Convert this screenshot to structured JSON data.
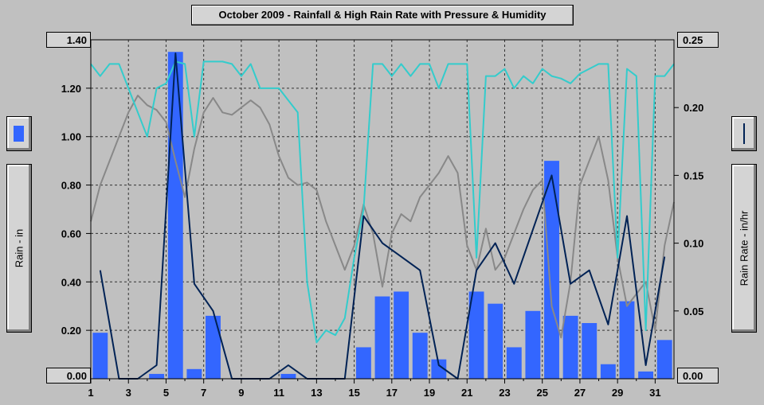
{
  "title": "October 2009 - Rainfall & High Rain Rate with Pressure & Humidity",
  "left_axis_label": "Rain - in",
  "right_axis_label": "Rain Rate - in/hr",
  "colors": {
    "background": "#c0c0c0",
    "bar": "#3366ff",
    "rain_rate": "#002255",
    "pressure": "#888888",
    "humidity": "#33cccc",
    "grid": "#333333"
  },
  "chart_data": {
    "type": "bar",
    "title": "October 2009 - Rainfall & High Rain Rate with Pressure & Humidity",
    "ylabel": "Rain - in",
    "y2label": "Rain Rate - in/hr",
    "xlim": [
      1,
      32
    ],
    "ylim": [
      0,
      1.4
    ],
    "y2lim": [
      0,
      0.25
    ],
    "grid": true,
    "x_ticks": [
      "1",
      "3",
      "5",
      "7",
      "9",
      "11",
      "13",
      "15",
      "17",
      "19",
      "21",
      "23",
      "25",
      "27",
      "29",
      "31"
    ],
    "y_ticks": [
      "0.00",
      "0.20",
      "0.40",
      "0.60",
      "0.80",
      "1.00",
      "1.20",
      "1.40"
    ],
    "y2_ticks": [
      "0.00",
      "0.05",
      "0.10",
      "0.15",
      "0.20",
      "0.25"
    ],
    "rainfall_days": [
      1,
      4,
      5,
      6,
      7,
      11,
      15,
      16,
      17,
      18,
      19,
      21,
      22,
      23,
      24,
      25,
      26,
      27,
      28,
      29,
      30,
      31
    ],
    "rainfall_values": [
      0.19,
      0.02,
      1.35,
      0.04,
      0.26,
      0.02,
      0.13,
      0.34,
      0.36,
      0.19,
      0.08,
      0.36,
      0.31,
      0.13,
      0.28,
      0.9,
      0.26,
      0.23,
      0.06,
      0.32,
      0.03,
      0.16
    ],
    "rain_rate": {
      "x": [
        1.5,
        2.5,
        3.5,
        4.5,
        5.5,
        6.5,
        7.5,
        8.5,
        9.5,
        10.5,
        11.5,
        12.5,
        13.5,
        14.5,
        15.5,
        16.5,
        17.5,
        18.5,
        19.5,
        20.5,
        21.5,
        22.5,
        23.5,
        24.5,
        25.5,
        26.5,
        27.5,
        28.5,
        29.5,
        30.5,
        31.5
      ],
      "y": [
        0.08,
        0.0,
        0.0,
        0.01,
        0.24,
        0.07,
        0.05,
        0.0,
        0.0,
        0.0,
        0.01,
        0.0,
        0.0,
        0.0,
        0.12,
        0.1,
        0.09,
        0.08,
        0.01,
        0.0,
        0.08,
        0.1,
        0.07,
        0.11,
        0.15,
        0.07,
        0.08,
        0.04,
        0.12,
        0.01,
        0.09
      ]
    },
    "pressure_trace": {
      "x": [
        1,
        1.5,
        2,
        2.5,
        3,
        3.5,
        4,
        4.5,
        5,
        5.5,
        6,
        6.5,
        7,
        7.5,
        8,
        8.5,
        9,
        9.5,
        10,
        10.5,
        11,
        11.5,
        12,
        12.5,
        13,
        13.5,
        14,
        14.5,
        15,
        15.5,
        16,
        16.5,
        17,
        17.5,
        18,
        18.5,
        19,
        19.5,
        20,
        20.5,
        21,
        21.5,
        22,
        22.5,
        23,
        23.5,
        24,
        24.5,
        25,
        25.5,
        26,
        26.5,
        27,
        27.5,
        28,
        28.5,
        29,
        29.5,
        30,
        30.5,
        31,
        31.5,
        32
      ],
      "y": [
        0.65,
        0.8,
        0.9,
        1.0,
        1.1,
        1.17,
        1.13,
        1.11,
        1.06,
        0.9,
        0.75,
        0.95,
        1.1,
        1.16,
        1.1,
        1.09,
        1.12,
        1.15,
        1.12,
        1.05,
        0.92,
        0.83,
        0.8,
        0.81,
        0.78,
        0.65,
        0.55,
        0.45,
        0.55,
        0.72,
        0.6,
        0.38,
        0.6,
        0.68,
        0.65,
        0.75,
        0.8,
        0.85,
        0.92,
        0.85,
        0.55,
        0.45,
        0.62,
        0.45,
        0.5,
        0.6,
        0.7,
        0.78,
        0.82,
        0.3,
        0.17,
        0.4,
        0.8,
        0.9,
        1.0,
        0.82,
        0.5,
        0.3,
        0.35,
        0.4,
        0.2,
        0.55,
        0.73
      ]
    },
    "humidity_trace": {
      "x": [
        1,
        1.5,
        2,
        2.5,
        3,
        3.5,
        4,
        4.5,
        5,
        5.5,
        6,
        6.5,
        7,
        7.5,
        8,
        8.5,
        9,
        9.5,
        10,
        10.5,
        11,
        11.5,
        12,
        12.5,
        13,
        13.5,
        14,
        14.5,
        15,
        15.5,
        16,
        16.5,
        17,
        17.5,
        18,
        18.5,
        19,
        19.5,
        20,
        20.5,
        21,
        21.5,
        22,
        22.5,
        23,
        23.5,
        24,
        24.5,
        25,
        25.5,
        26,
        26.5,
        27,
        27.5,
        28,
        28.5,
        29,
        29.5,
        30,
        30.5,
        31,
        31.5,
        32
      ],
      "y": [
        1.3,
        1.25,
        1.3,
        1.3,
        1.2,
        1.1,
        1.0,
        1.2,
        1.22,
        1.31,
        1.3,
        1.0,
        1.31,
        1.31,
        1.31,
        1.3,
        1.25,
        1.3,
        1.2,
        1.2,
        1.2,
        1.15,
        1.1,
        0.4,
        0.15,
        0.2,
        0.18,
        0.25,
        0.5,
        0.7,
        1.3,
        1.3,
        1.25,
        1.3,
        1.25,
        1.3,
        1.3,
        1.2,
        1.3,
        1.3,
        1.3,
        0.5,
        1.25,
        1.25,
        1.28,
        1.2,
        1.25,
        1.22,
        1.28,
        1.25,
        1.24,
        1.22,
        1.26,
        1.28,
        1.3,
        1.3,
        0.5,
        1.28,
        1.25,
        0.2,
        1.25,
        1.25,
        1.3
      ]
    }
  }
}
